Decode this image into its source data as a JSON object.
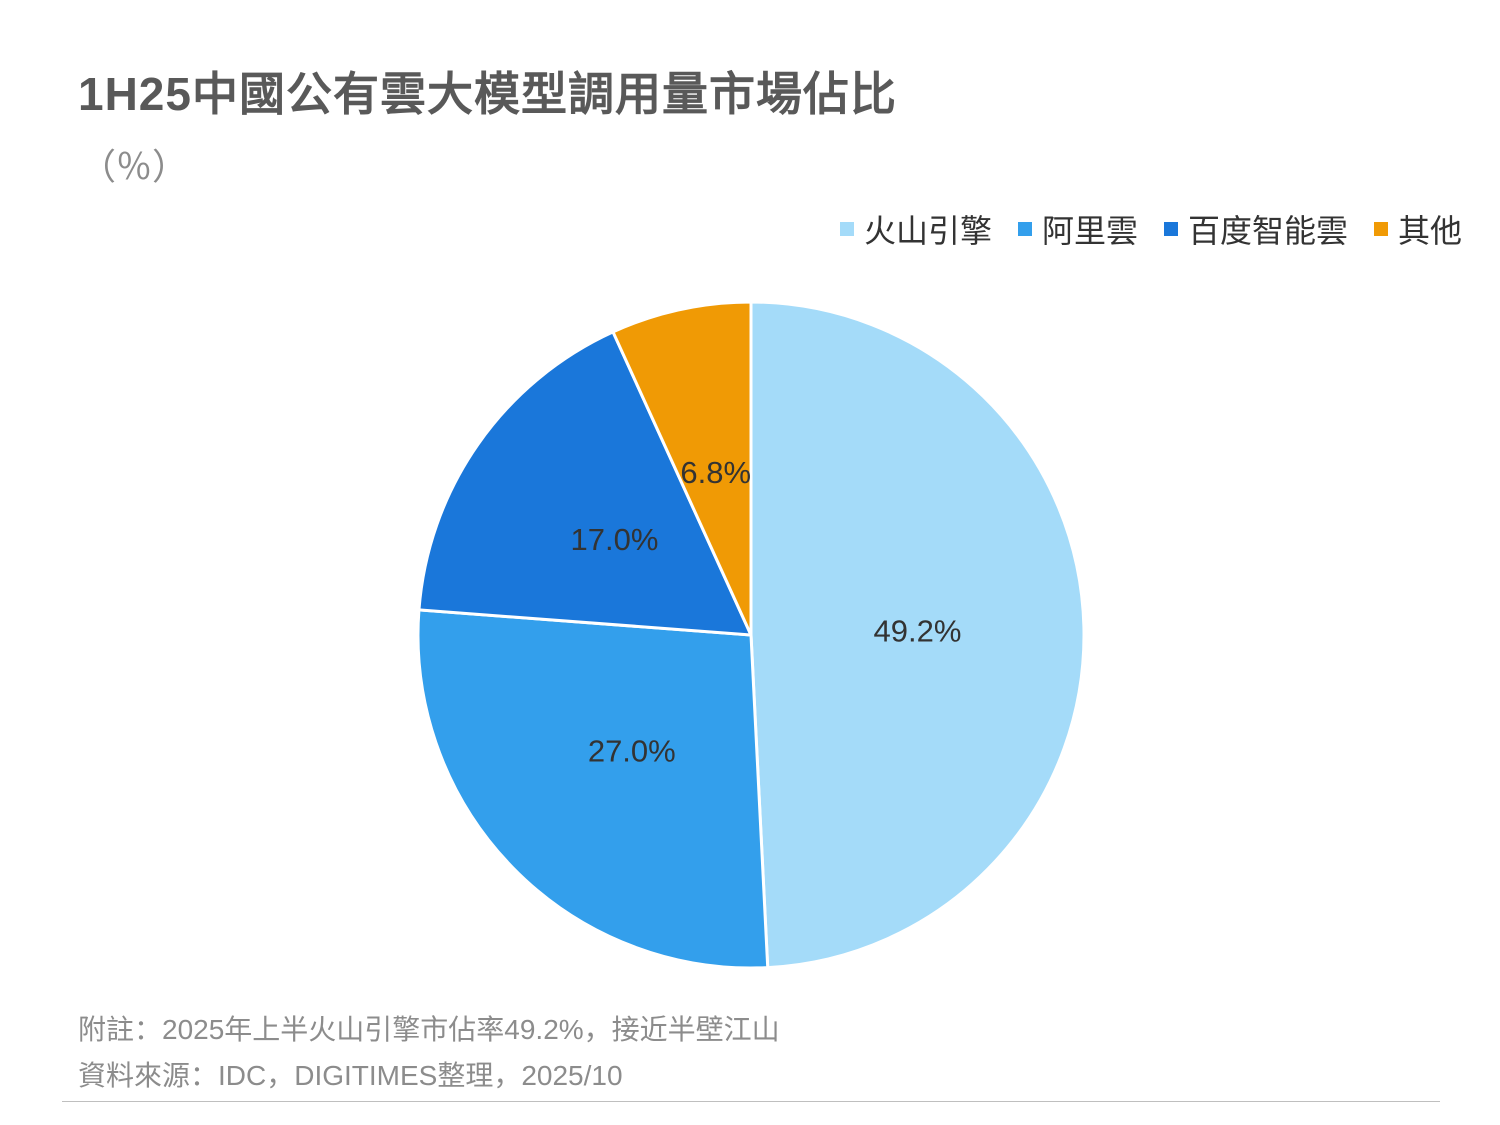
{
  "title": "1H25中國公有雲大模型調用量市場佔比",
  "subtitle": "（％）",
  "chart_data": {
    "type": "pie",
    "title": "1H25中國公有雲大模型調用量市場佔比",
    "unit": "（％）",
    "legend_position": "top-right",
    "slices": [
      {
        "name": "火山引擎",
        "value": 49.2,
        "label": "49.2%",
        "color": "#a4dbf9"
      },
      {
        "name": "阿里雲",
        "value": 27.0,
        "label": "27.0%",
        "color": "#339fec"
      },
      {
        "name": "百度智能雲",
        "value": 17.0,
        "label": "17.0%",
        "color": "#1a77da"
      },
      {
        "name": "其他",
        "value": 6.8,
        "label": "6.8%",
        "color": "#f09a05"
      }
    ]
  },
  "footer": {
    "note": "附註：2025年上半火山引擎市佔率49.2%，接近半壁江山",
    "source": "資料來源：IDC，DIGITIMES整理，2025/10"
  }
}
